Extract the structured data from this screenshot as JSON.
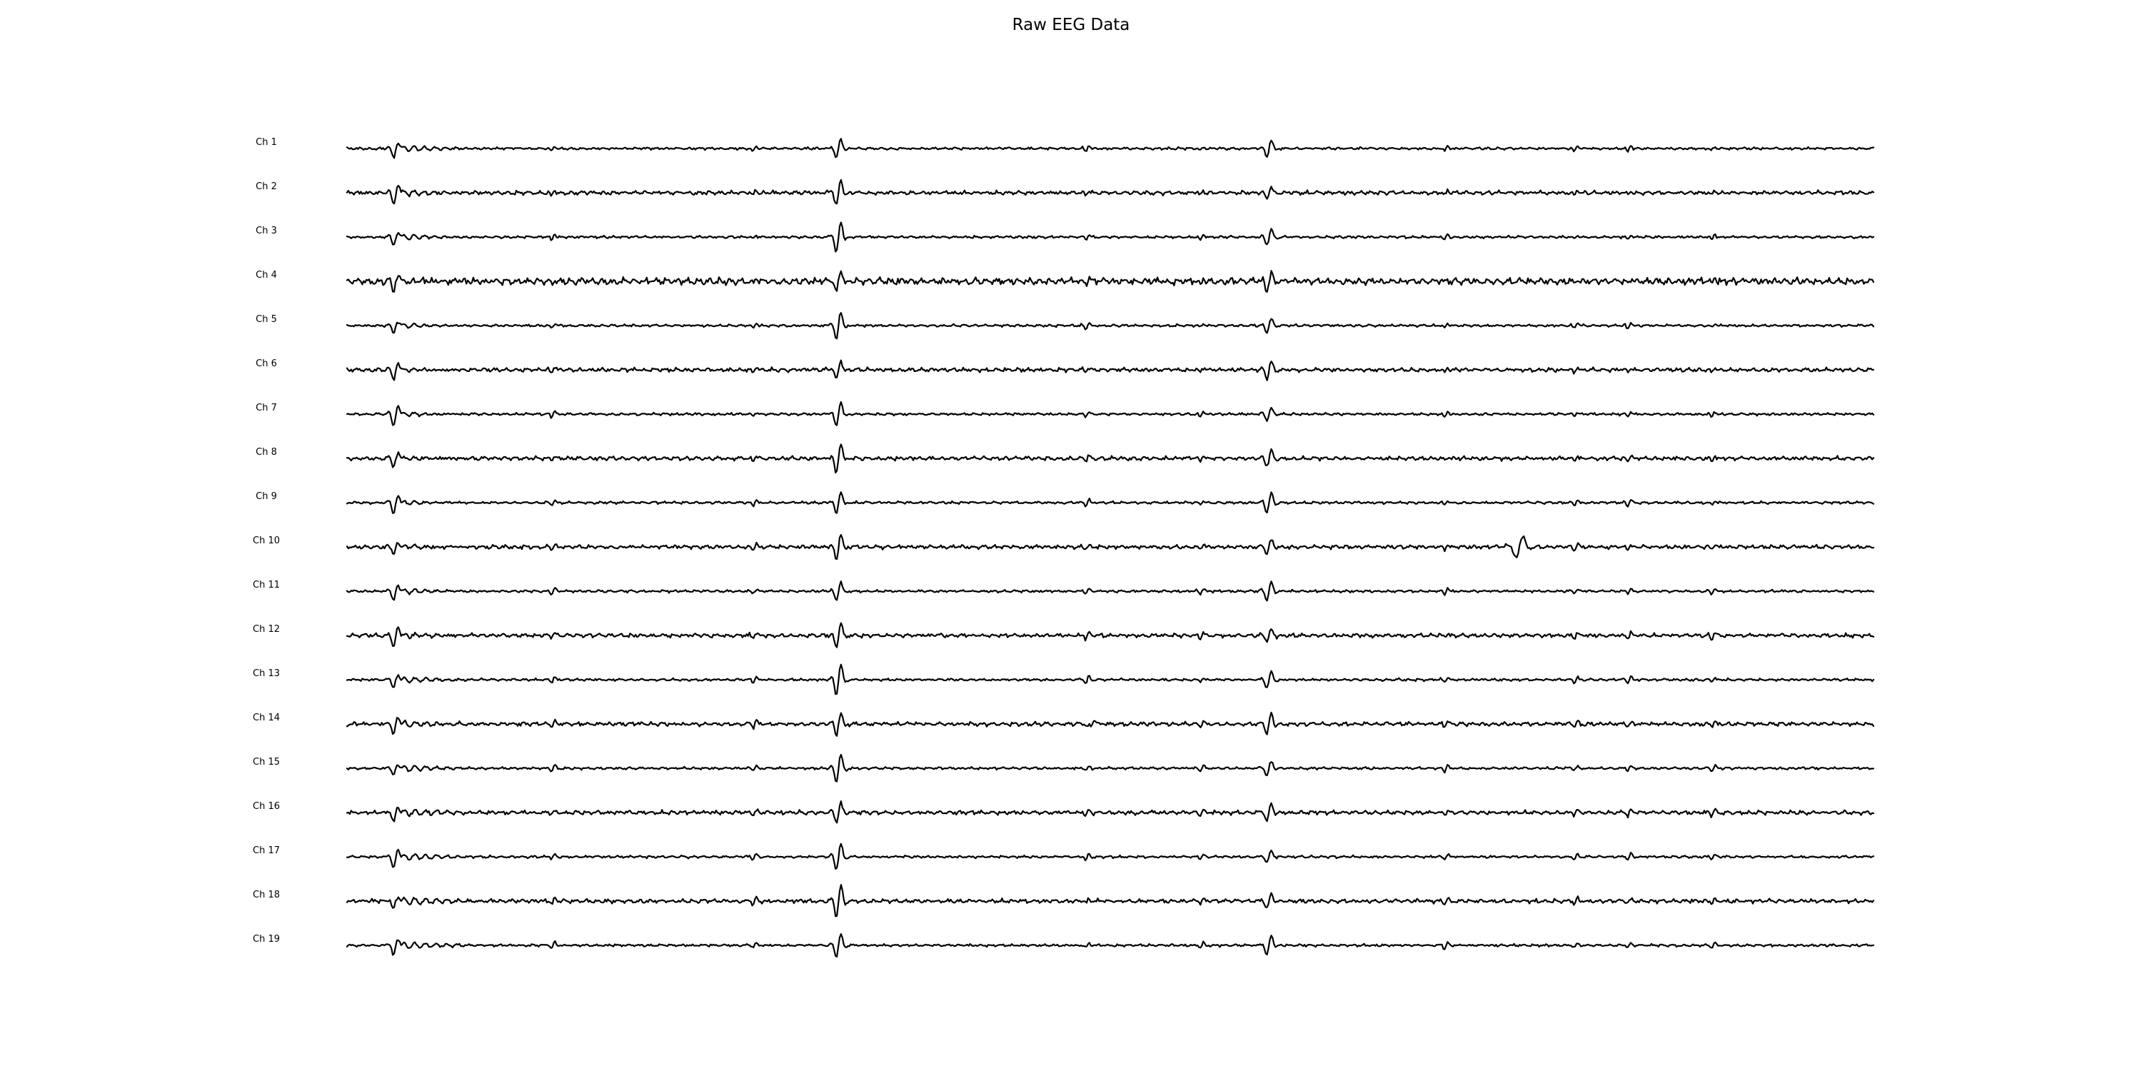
{
  "chart_data": {
    "type": "line",
    "title": "Raw EEG Data",
    "xlabel": "",
    "ylabel": "",
    "grid": false,
    "axes_visible": false,
    "legend": "none",
    "line_color": "#000000",
    "time_range": [
      0,
      1
    ],
    "events": [
      {
        "t": 0.032,
        "kind": "spike"
      },
      {
        "t": 0.322,
        "kind": "spike"
      },
      {
        "t": 0.604,
        "kind": "spike"
      }
    ],
    "series": [
      {
        "name": "Ch 1"
      },
      {
        "name": "Ch 2"
      },
      {
        "name": "Ch 3"
      },
      {
        "name": "Ch 4"
      },
      {
        "name": "Ch 5"
      },
      {
        "name": "Ch 6"
      },
      {
        "name": "Ch 7"
      },
      {
        "name": "Ch 8"
      },
      {
        "name": "Ch 9"
      },
      {
        "name": "Ch 10"
      },
      {
        "name": "Ch 11"
      },
      {
        "name": "Ch 12"
      },
      {
        "name": "Ch 13"
      },
      {
        "name": "Ch 14"
      },
      {
        "name": "Ch 15"
      },
      {
        "name": "Ch 16"
      },
      {
        "name": "Ch 17"
      },
      {
        "name": "Ch 18"
      },
      {
        "name": "Ch 19"
      }
    ]
  }
}
